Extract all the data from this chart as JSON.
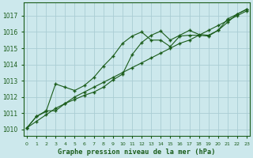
{
  "title": "Graphe pression niveau de la mer (hPa)",
  "background_color": "#cce8ec",
  "grid_color": "#aacdd4",
  "line_color": "#1a5c1a",
  "xlim": [
    -0.3,
    23.3
  ],
  "ylim": [
    1009.6,
    1017.8
  ],
  "yticks": [
    1010,
    1011,
    1012,
    1013,
    1014,
    1015,
    1016,
    1017
  ],
  "xticks": [
    0,
    1,
    2,
    3,
    4,
    5,
    6,
    7,
    8,
    9,
    10,
    11,
    12,
    13,
    14,
    15,
    16,
    17,
    18,
    19,
    20,
    21,
    22,
    23
  ],
  "series_smooth": [
    1010.1,
    1010.5,
    1010.9,
    1011.3,
    1011.6,
    1012.0,
    1012.3,
    1012.6,
    1012.9,
    1013.2,
    1013.5,
    1013.8,
    1014.1,
    1014.4,
    1014.7,
    1015.0,
    1015.3,
    1015.5,
    1015.8,
    1016.1,
    1016.4,
    1016.7,
    1017.0,
    1017.3
  ],
  "series_wavy": [
    1010.1,
    1010.8,
    1011.1,
    1012.8,
    1012.6,
    1012.4,
    1012.7,
    1013.2,
    1013.9,
    1014.5,
    1015.3,
    1015.75,
    1016.0,
    1015.5,
    1015.5,
    1015.1,
    1015.75,
    1015.8,
    1015.8,
    1015.75,
    1016.1,
    1016.8,
    1017.1,
    1017.4
  ],
  "series_mid": [
    1010.1,
    1010.8,
    1011.15,
    1011.15,
    1011.6,
    1011.85,
    1012.1,
    1012.3,
    1012.6,
    1013.05,
    1013.4,
    1014.6,
    1015.35,
    1015.8,
    1016.05,
    1015.5,
    1015.8,
    1016.1,
    1015.85,
    1015.8,
    1016.1,
    1016.6,
    1017.1,
    1017.4
  ]
}
